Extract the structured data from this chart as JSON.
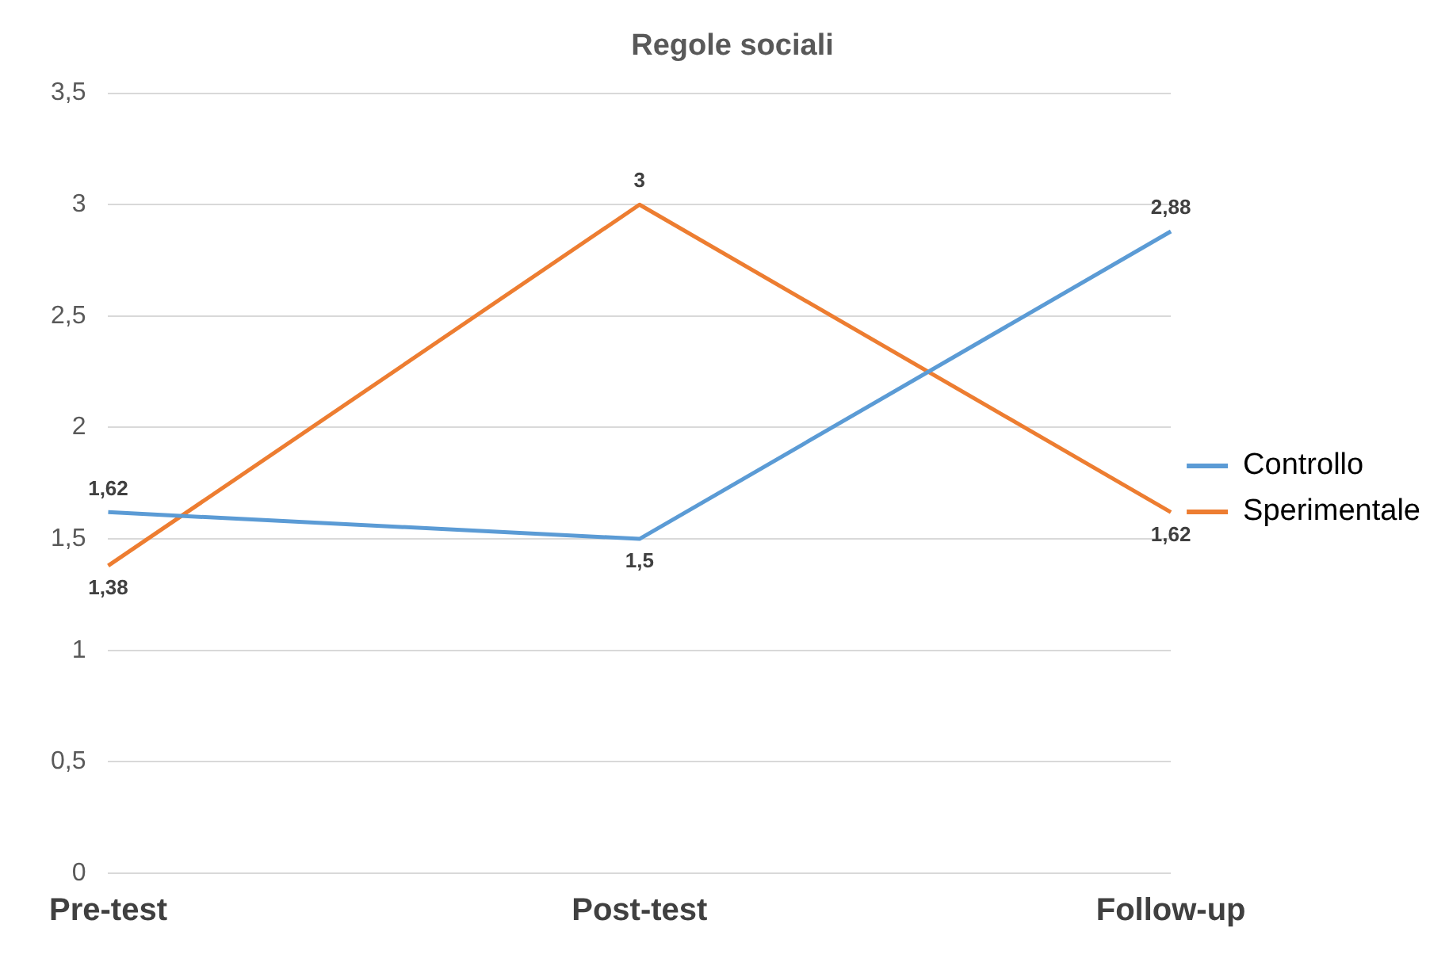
{
  "chart_data": {
    "type": "line",
    "title": "Regole sociali",
    "categories": [
      "Pre-test",
      "Post-test",
      "Follow-up"
    ],
    "series": [
      {
        "name": "Controllo",
        "color": "#5b9bd5",
        "values": [
          1.62,
          1.5,
          2.88
        ],
        "value_labels": [
          "1,62",
          "1,5",
          "2,88"
        ]
      },
      {
        "name": "Sperimentale",
        "color": "#ed7d31",
        "values": [
          1.38,
          3,
          1.62
        ],
        "value_labels": [
          "1,38",
          "3",
          "1,62"
        ]
      }
    ],
    "ylim": [
      0,
      3.5
    ],
    "yticks": [
      {
        "value": 0,
        "label": "0"
      },
      {
        "value": 0.5,
        "label": "0,5"
      },
      {
        "value": 1,
        "label": "1"
      },
      {
        "value": 1.5,
        "label": "1,5"
      },
      {
        "value": 2,
        "label": "2"
      },
      {
        "value": 2.5,
        "label": "2,5"
      },
      {
        "value": 3,
        "label": "3"
      },
      {
        "value": 3.5,
        "label": "3,5"
      }
    ],
    "grid": "y",
    "legend": "right",
    "marker": "none",
    "line_style": "solid"
  }
}
